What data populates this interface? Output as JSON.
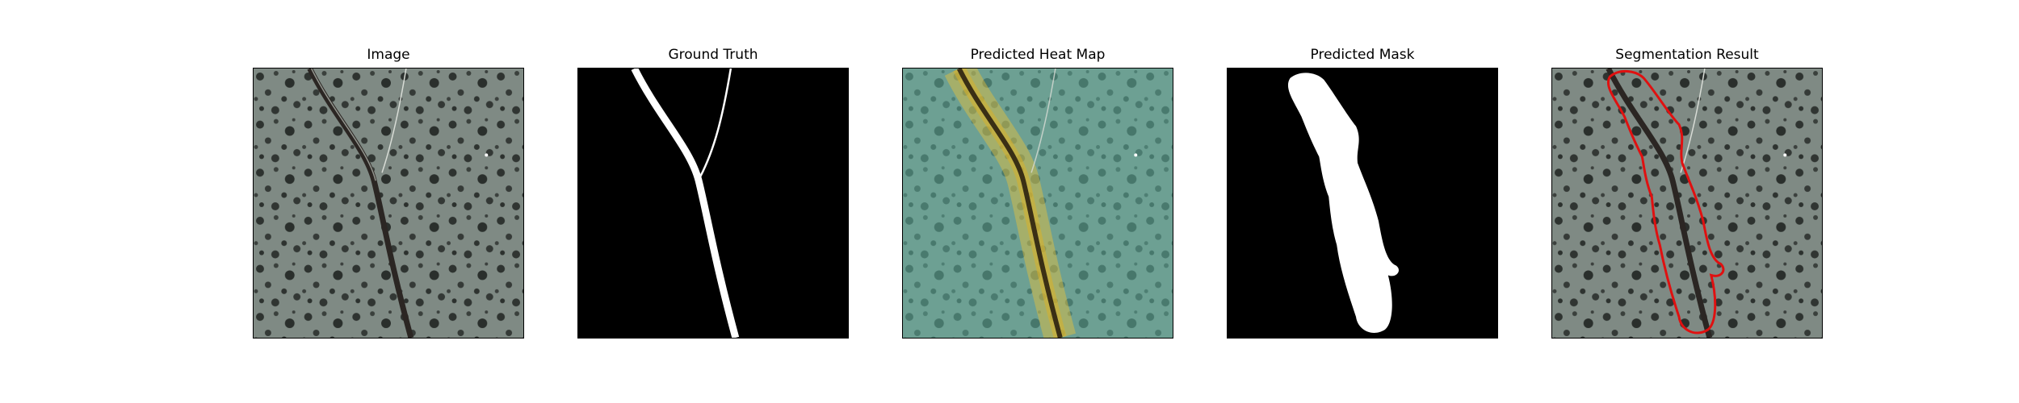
{
  "panels": [
    {
      "title": "Image"
    },
    {
      "title": "Ground Truth"
    },
    {
      "title": "Predicted Heat Map"
    },
    {
      "title": "Predicted Mask"
    },
    {
      "title": "Segmentation Result"
    }
  ],
  "colors": {
    "background": "#ffffff",
    "surface": "#7f8a84",
    "crack": "#2b2623",
    "mask_foreground": "#ffffff",
    "mask_background": "#000000",
    "heatmap_low": "#5fb3a0",
    "heatmap_high": "#e8c23a",
    "contour": "#e01010"
  }
}
